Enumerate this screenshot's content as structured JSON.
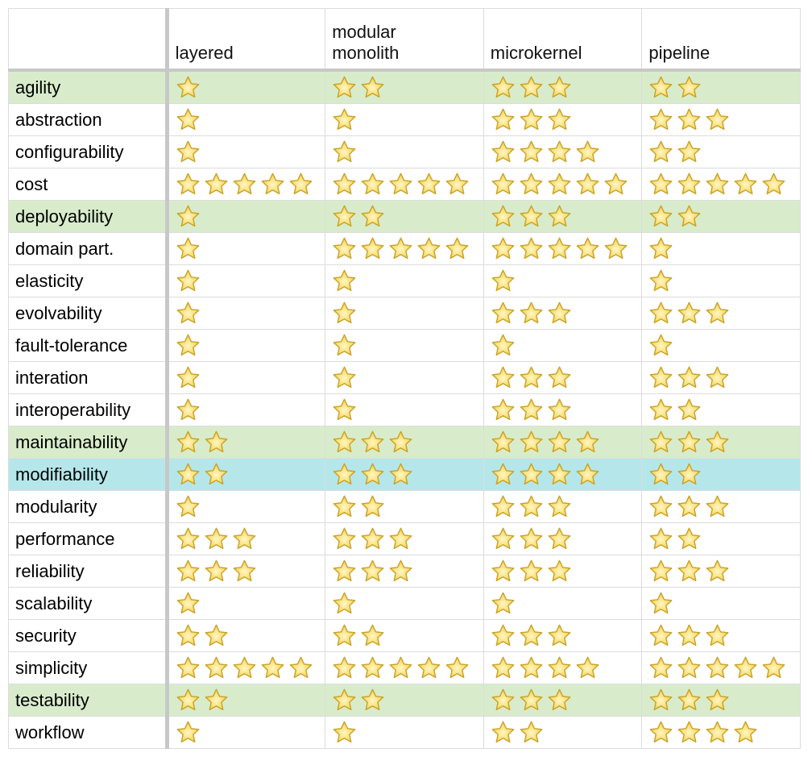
{
  "table": {
    "columns": [
      "",
      "layered",
      "modular\nmonolith",
      "microkernel",
      "pipeline"
    ],
    "rows": [
      {
        "name": "agility",
        "highlight": "green",
        "ratings": [
          1,
          2,
          3,
          2
        ]
      },
      {
        "name": "abstraction",
        "highlight": "none",
        "ratings": [
          1,
          1,
          3,
          3
        ]
      },
      {
        "name": "configurability",
        "highlight": "none",
        "ratings": [
          1,
          1,
          4,
          2
        ]
      },
      {
        "name": "cost",
        "highlight": "none",
        "ratings": [
          5,
          5,
          5,
          5
        ]
      },
      {
        "name": "deployability",
        "highlight": "green",
        "ratings": [
          1,
          2,
          3,
          2
        ]
      },
      {
        "name": "domain part.",
        "highlight": "none",
        "ratings": [
          1,
          5,
          5,
          1
        ]
      },
      {
        "name": "elasticity",
        "highlight": "none",
        "ratings": [
          1,
          1,
          1,
          1
        ]
      },
      {
        "name": "evolvability",
        "highlight": "none",
        "ratings": [
          1,
          1,
          3,
          3
        ]
      },
      {
        "name": "fault-tolerance",
        "highlight": "none",
        "ratings": [
          1,
          1,
          1,
          1
        ]
      },
      {
        "name": "interation",
        "highlight": "none",
        "ratings": [
          1,
          1,
          3,
          3
        ]
      },
      {
        "name": "interoperability",
        "highlight": "none",
        "ratings": [
          1,
          1,
          3,
          2
        ]
      },
      {
        "name": "maintainability",
        "highlight": "green",
        "ratings": [
          2,
          3,
          4,
          3
        ]
      },
      {
        "name": "modifiability",
        "highlight": "cyan",
        "ratings": [
          2,
          3,
          4,
          2
        ]
      },
      {
        "name": "modularity",
        "highlight": "none",
        "ratings": [
          1,
          2,
          3,
          3
        ]
      },
      {
        "name": "performance",
        "highlight": "none",
        "ratings": [
          3,
          3,
          3,
          2
        ]
      },
      {
        "name": "reliability",
        "highlight": "none",
        "ratings": [
          3,
          3,
          3,
          3
        ]
      },
      {
        "name": "scalability",
        "highlight": "none",
        "ratings": [
          1,
          1,
          1,
          1
        ]
      },
      {
        "name": "security",
        "highlight": "none",
        "ratings": [
          2,
          2,
          3,
          3
        ]
      },
      {
        "name": "simplicity",
        "highlight": "none",
        "ratings": [
          5,
          5,
          4,
          5
        ]
      },
      {
        "name": "testability",
        "highlight": "green",
        "ratings": [
          2,
          2,
          3,
          3
        ]
      },
      {
        "name": "workflow",
        "highlight": "none",
        "ratings": [
          1,
          1,
          2,
          4
        ]
      }
    ]
  },
  "colors": {
    "highlight_green": "#d8eccb",
    "highlight_cyan": "#b5e7ea",
    "star_fill": "#f7d24a",
    "star_stroke": "#c9a227"
  },
  "icons": {
    "rating": "star-icon"
  }
}
